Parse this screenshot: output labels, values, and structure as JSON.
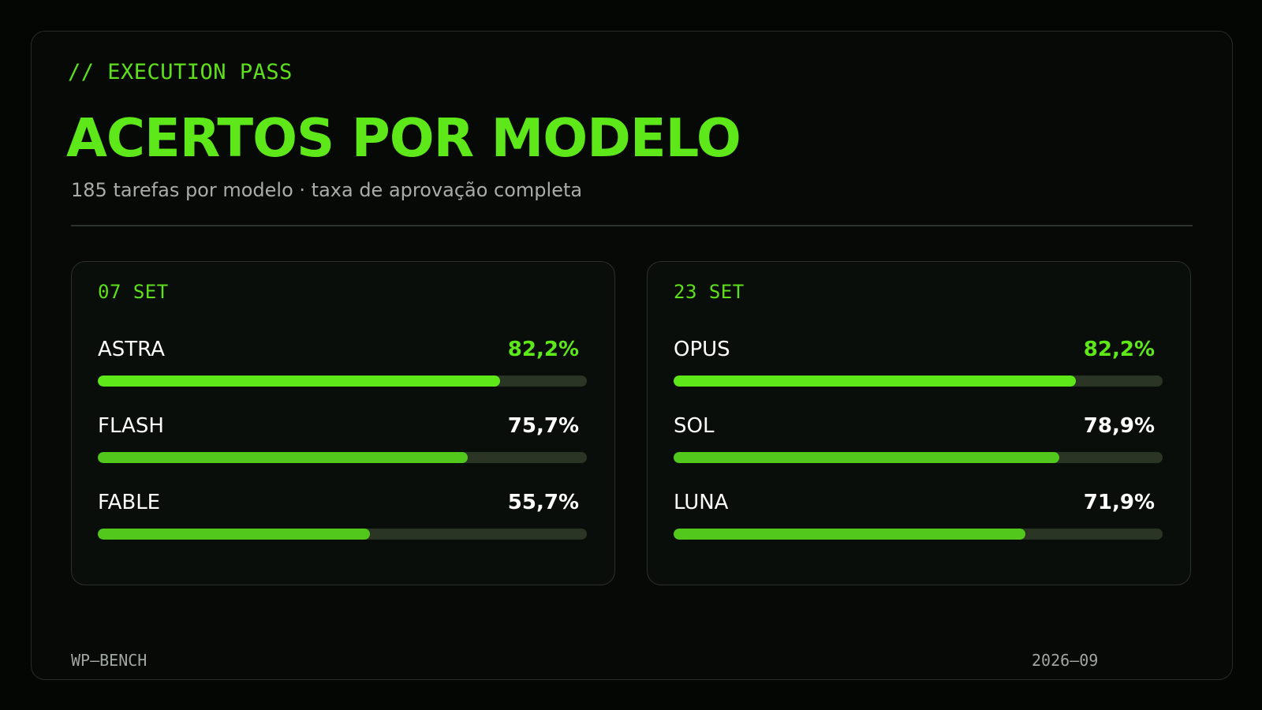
{
  "header": {
    "kicker": "// EXECUTION PASS",
    "title": "ACERTOS POR MODELO",
    "subtitle": "185 tarefas por modelo · taxa de aprovação completa"
  },
  "footer": {
    "left": "WP–BENCH",
    "right": "2026–09"
  },
  "colors": {
    "accent": "#5ee81a",
    "bar": "#52c81c",
    "track": "#2a3526"
  },
  "chart_data": [
    {
      "type": "bar",
      "orientation": "horizontal",
      "title": "07 SET",
      "categories": [
        "ASTRA",
        "FLASH",
        "FABLE"
      ],
      "values": [
        82.2,
        75.7,
        55.7
      ],
      "labels": [
        "82,2%",
        "75,7%",
        "55,7%"
      ],
      "xlim": [
        0,
        100
      ],
      "unit": "%",
      "highlight_index": 0
    },
    {
      "type": "bar",
      "orientation": "horizontal",
      "title": "23 SET",
      "categories": [
        "OPUS",
        "SOL",
        "LUNA"
      ],
      "values": [
        82.2,
        78.9,
        71.9
      ],
      "labels": [
        "82,2%",
        "78,9%",
        "71,9%"
      ],
      "xlim": [
        0,
        100
      ],
      "unit": "%",
      "highlight_index": 0
    }
  ]
}
